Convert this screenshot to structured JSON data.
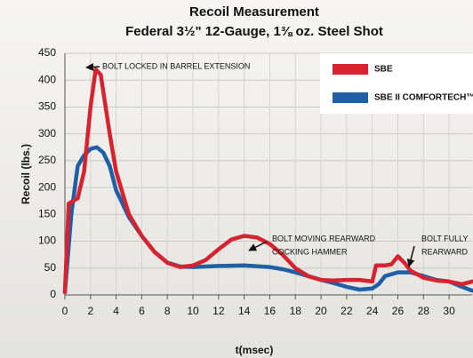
{
  "chart_data": {
    "type": "line",
    "title": "Recoil Measurement",
    "subtitle": "Federal 3½\" 12-Gauge, 1⅜ oz. Steel Shot",
    "xlabel": "t(msec)",
    "ylabel": "Recoil (lbs.)",
    "xlim": [
      0,
      31.8
    ],
    "ylim": [
      0,
      450
    ],
    "xticks": [
      0,
      2,
      4,
      6,
      8,
      10,
      12,
      14,
      16,
      18,
      20,
      22,
      24,
      26,
      28,
      30
    ],
    "yticks": [
      0,
      50,
      100,
      150,
      200,
      250,
      300,
      350,
      400,
      450
    ],
    "grid": true,
    "legend": "upper right",
    "series": [
      {
        "name": "SBE",
        "color": "#d7222f",
        "x": [
          0,
          0.3,
          1,
          1.5,
          2,
          2.4,
          2.8,
          3.5,
          4,
          5,
          6,
          7,
          8,
          9,
          10,
          11,
          12,
          13,
          14,
          15,
          16,
          17,
          18,
          19,
          20,
          21,
          22,
          23,
          24,
          24.3,
          25,
          25.5,
          26,
          26.5,
          27,
          28,
          29,
          30,
          31,
          31.8
        ],
        "values": [
          5,
          170,
          180,
          230,
          350,
          420,
          410,
          300,
          230,
          150,
          110,
          80,
          60,
          52,
          55,
          65,
          85,
          103,
          110,
          107,
          95,
          75,
          50,
          35,
          28,
          27,
          28,
          28,
          25,
          55,
          55,
          57,
          72,
          60,
          45,
          32,
          27,
          25,
          20,
          25
        ]
      },
      {
        "name": "SBE II COMFORTECH™",
        "color": "#1f5fa6",
        "x": [
          0,
          0.5,
          1,
          1.5,
          2,
          2.5,
          3,
          3.5,
          4,
          5,
          6,
          7,
          8,
          9,
          10,
          12,
          14,
          16,
          17,
          18,
          19,
          20,
          21,
          22,
          23,
          24,
          24.5,
          25,
          26,
          27,
          28,
          29,
          30,
          31,
          31.8
        ],
        "values": [
          5,
          150,
          240,
          260,
          272,
          275,
          265,
          240,
          195,
          145,
          110,
          80,
          60,
          53,
          52,
          54,
          55,
          52,
          48,
          42,
          35,
          28,
          22,
          15,
          10,
          12,
          20,
          35,
          42,
          42,
          35,
          28,
          25,
          15,
          8
        ]
      }
    ],
    "annotations": [
      {
        "lines": [
          "BOLT LOCKED IN BARREL EXTENSION"
        ]
      },
      {
        "lines": [
          "BOLT MOVING REARWARD",
          "COCKING HAMMER"
        ]
      },
      {
        "lines": [
          "BOLT FULLY",
          "REARWARD"
        ]
      }
    ]
  }
}
